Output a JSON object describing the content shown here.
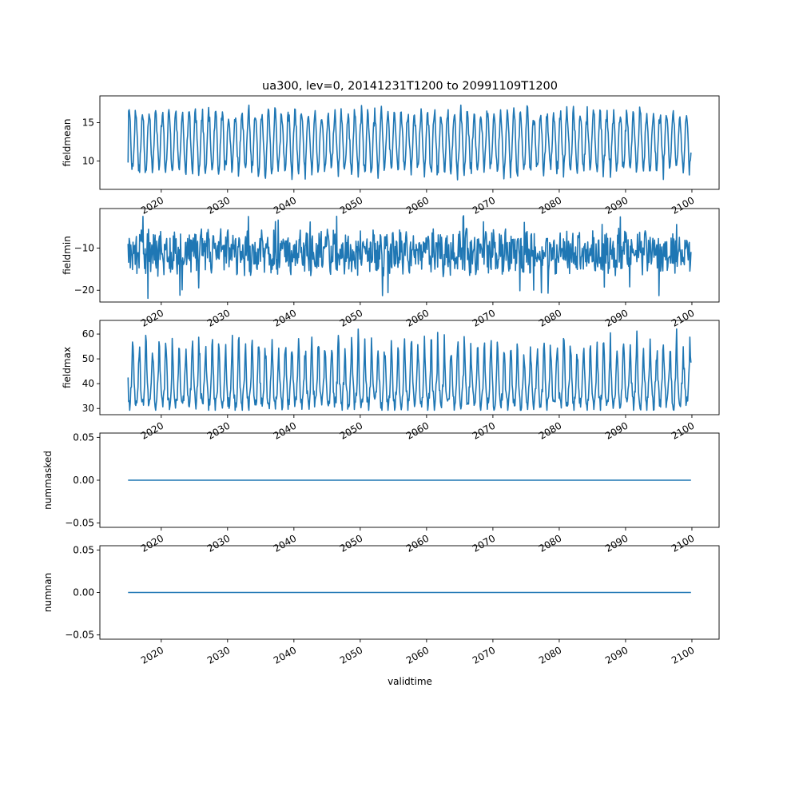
{
  "figure": {
    "title": "ua300, lev=0, 20141231T1200 to 20991109T1200",
    "xlabel": "validtime",
    "line_color": "#1f77b4"
  },
  "chart_data": [
    {
      "type": "line",
      "ylabel": "fieldmean",
      "x_range": [
        2015.0,
        2099.86
      ],
      "xlim": [
        2010.75,
        2104.1
      ],
      "ylim": [
        6.3,
        18.5
      ],
      "yticks": [
        10,
        15
      ],
      "xticks": [
        2020,
        2030,
        2040,
        2050,
        2060,
        2070,
        2080,
        2090,
        2100
      ],
      "yearly_cycle": {
        "mean": 12.5,
        "amplitude": 3.6,
        "min_range": [
          6.7,
          9.5
        ],
        "max_range": [
          14.8,
          17.9
        ]
      },
      "start_value": 9.8,
      "end_value": 11.1
    },
    {
      "type": "line",
      "ylabel": "fieldmin",
      "x_range": [
        2015.0,
        2099.86
      ],
      "xlim": [
        2010.75,
        2104.1
      ],
      "ylim": [
        -22.8,
        -0.6
      ],
      "yticks": [
        -20,
        -10
      ],
      "xticks": [
        2020,
        2030,
        2040,
        2050,
        2060,
        2070,
        2080,
        2090,
        2100
      ],
      "noise": {
        "mean": -11.0,
        "spread": 3.3,
        "lowest": -22.1,
        "highest": -1.8
      },
      "start_value": -9.0,
      "end_value": -10.9
    },
    {
      "type": "line",
      "ylabel": "fieldmax",
      "x_range": [
        2015.0,
        2099.86
      ],
      "xlim": [
        2010.75,
        2104.1
      ],
      "ylim": [
        27.5,
        65.5
      ],
      "yticks": [
        30,
        40,
        50,
        60
      ],
      "xticks": [
        2020,
        2030,
        2040,
        2050,
        2060,
        2070,
        2080,
        2090,
        2100
      ],
      "yearly_cycle": {
        "mean": 42.0,
        "amplitude": 7.0,
        "lowest": 29.3,
        "highest": 63.5
      },
      "start_value": 42.5,
      "end_value": 48.5
    },
    {
      "type": "line",
      "ylabel": "nummasked",
      "x_range": [
        2015.0,
        2099.86
      ],
      "xlim": [
        2010.75,
        2104.1
      ],
      "ylim": [
        -0.055,
        0.055
      ],
      "yticks": [
        -0.05,
        0.0,
        0.05
      ],
      "ytick_labels": [
        "−0.05",
        "0.00",
        "0.05"
      ],
      "xticks": [
        2020,
        2030,
        2040,
        2050,
        2060,
        2070,
        2080,
        2090,
        2100
      ],
      "constant_value": 0.0
    },
    {
      "type": "line",
      "ylabel": "numnan",
      "x_range": [
        2015.0,
        2099.86
      ],
      "xlim": [
        2010.75,
        2104.1
      ],
      "ylim": [
        -0.055,
        0.055
      ],
      "yticks": [
        -0.05,
        0.0,
        0.05
      ],
      "ytick_labels": [
        "−0.05",
        "0.00",
        "0.05"
      ],
      "xticks": [
        2020,
        2030,
        2040,
        2050,
        2060,
        2070,
        2080,
        2090,
        2100
      ],
      "constant_value": 0.0
    }
  ]
}
